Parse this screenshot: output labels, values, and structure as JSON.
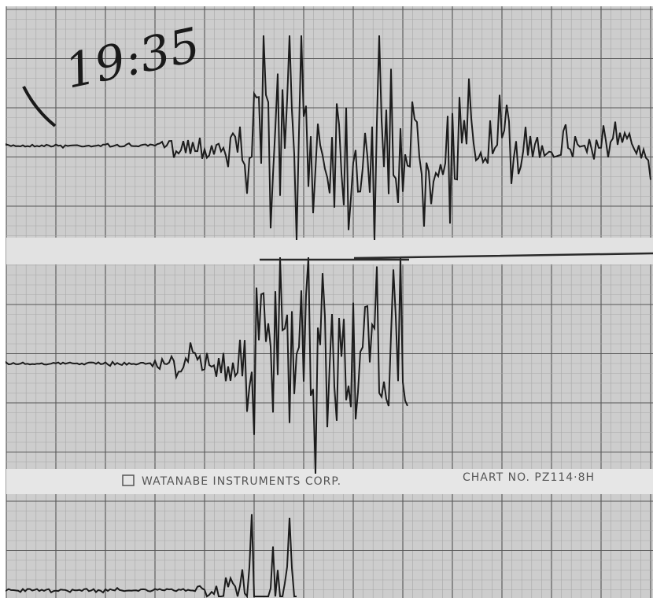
{
  "handwritten_time": "19:35",
  "chart_strip": {
    "maker": "WATANABE INSTRUMENTS CORP.",
    "chart_number": "CHART NO. PZ114·8H"
  }
}
